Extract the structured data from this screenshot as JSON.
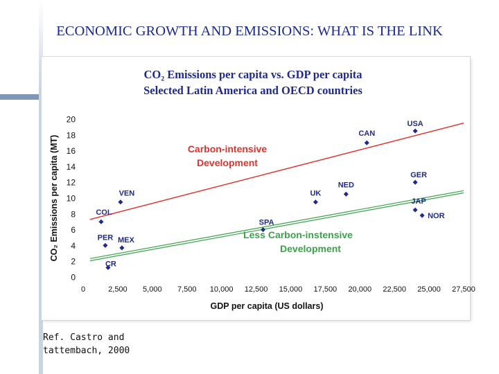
{
  "slide": {
    "title": "ECONOMIC GROWTH AND EMISSIONS:  WHAT IS THE LINK",
    "reference": "Ref. Castro and\ntattembach, 2000"
  },
  "colors": {
    "title": "#1a2a8c",
    "points": "#1f2a8c",
    "labels": "#1f2a8c",
    "carbon_intensive": "#e2312b",
    "less_carbon_intensive": "#3aa34a",
    "axis_text": "#111111",
    "chart_titles": "#1f2a8c"
  },
  "chart_data": {
    "type": "scatter",
    "title_line1": "CO₂ Emissions per capita vs. GDP per capita",
    "title_line2": "Selected Latin America and OECD countries",
    "xlabel": "GDP per capita (US dollars)",
    "ylabel": "CO₂ Emissions per capita (MT)",
    "xlim": [
      0,
      27500
    ],
    "ylim": [
      0,
      20
    ],
    "xticks": [
      "0",
      "2,500",
      "5,000",
      "7,500",
      "10,000",
      "12,500",
      "15,000",
      "17,500",
      "20,000",
      "22,500",
      "25,000",
      "27,500"
    ],
    "yticks": [
      "0",
      "2",
      "4",
      "6",
      "8",
      "10",
      "12",
      "14",
      "16",
      "18",
      "20"
    ],
    "grid": false,
    "points": [
      {
        "label": "USA",
        "x": 24000,
        "y": 18.5
      },
      {
        "label": "CAN",
        "x": 20500,
        "y": 17.0
      },
      {
        "label": "GER",
        "x": 24000,
        "y": 12.0
      },
      {
        "label": "NED",
        "x": 19000,
        "y": 10.5
      },
      {
        "label": "UK",
        "x": 16800,
        "y": 9.5
      },
      {
        "label": "JAP",
        "x": 24000,
        "y": 8.5
      },
      {
        "label": "NOR",
        "x": 24500,
        "y": 7.8
      },
      {
        "label": "SPA",
        "x": 13000,
        "y": 6.0
      },
      {
        "label": "VEN",
        "x": 2700,
        "y": 9.5
      },
      {
        "label": "COL",
        "x": 1300,
        "y": 7.0
      },
      {
        "label": "PER",
        "x": 1600,
        "y": 4.0
      },
      {
        "label": "MEX",
        "x": 2800,
        "y": 3.7
      },
      {
        "label": "CR",
        "x": 1800,
        "y": 1.2
      }
    ],
    "trendlines": [
      {
        "label": "Carbon-intensive\nDevelopment",
        "start": [
          500,
          7.3
        ],
        "end": [
          27500,
          19.5
        ]
      },
      {
        "label": "Less Carbon-instensive\nDevelopment",
        "start": [
          500,
          2.2
        ],
        "end": [
          27500,
          10.8
        ]
      }
    ]
  }
}
